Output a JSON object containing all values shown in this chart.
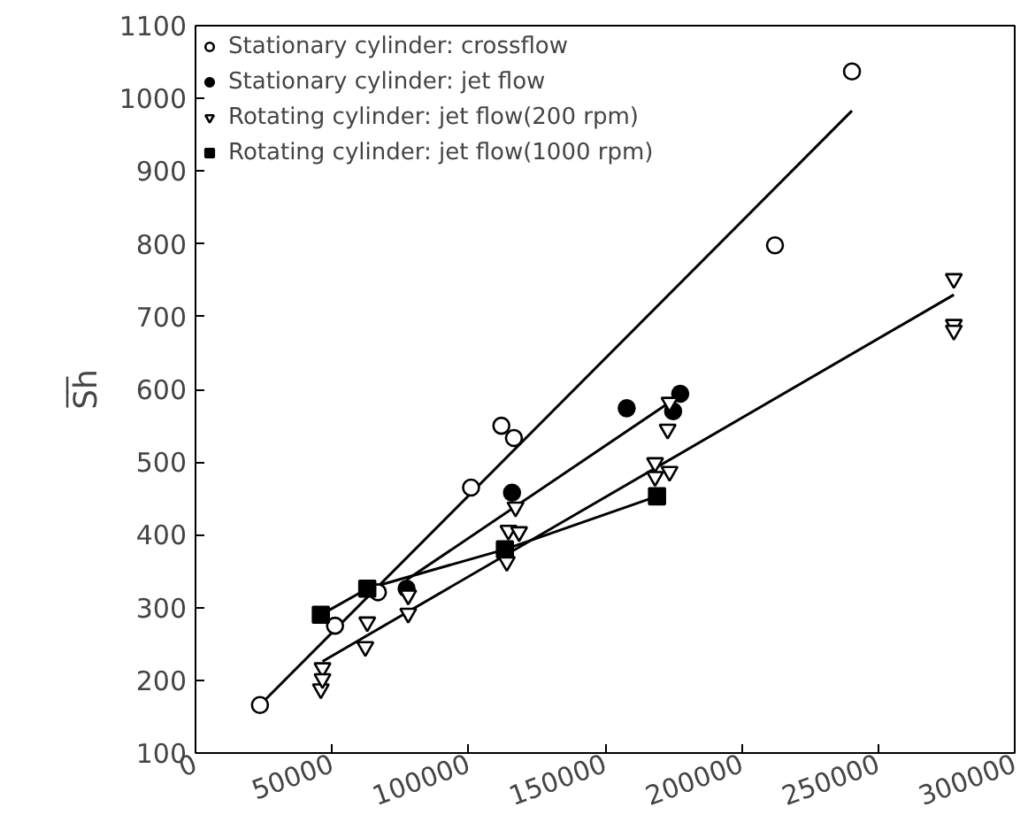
{
  "chart_data": {
    "type": "scatter",
    "ylabel": "S̅h̅",
    "xlim": [
      0,
      300000
    ],
    "ylim": [
      100,
      1100
    ],
    "xticks": [
      0,
      50000,
      100000,
      150000,
      200000,
      250000,
      300000
    ],
    "yticks": [
      100,
      200,
      300,
      400,
      500,
      600,
      700,
      800,
      900,
      1000,
      1100
    ],
    "grid": false,
    "legend": "top left",
    "series": [
      {
        "name": "Stationary cylinder: crossflow",
        "color": "#000000",
        "marker": "circle",
        "x": [
          23600,
          51100,
          66800,
          100900,
          112000,
          116600,
          212200,
          240400
        ],
        "values": [
          166,
          275,
          321,
          465,
          550,
          533,
          798,
          1037
        ]
      },
      {
        "name": "Stationary cylinder: jet flow",
        "color": "#000000",
        "marker": "circle",
        "x": [
          77300,
          115900,
          157900,
          177500,
          174900
        ],
        "values": [
          326,
          458,
          574,
          594,
          570
        ]
      },
      {
        "name": "Rotating cylinder: jet flow(200 rpm)",
        "color": "#000000",
        "marker": "triangle",
        "x": [
          46500,
          45900,
          46500,
          62900,
          62200,
          77900,
          77900,
          114000,
          117200,
          114600,
          118500,
          172900,
          173600,
          168300,
          173600,
          168300,
          277700,
          277700,
          277700
        ],
        "values": [
          217,
          188,
          202,
          280,
          246,
          317,
          292,
          363,
          438,
          406,
          404,
          545,
          582,
          499,
          487,
          480,
          752,
          689,
          681
        ]
      },
      {
        "name": "Rotating cylinder: jet flow(1000 rpm)",
        "type": "line",
        "color": "#000000",
        "marker": "square",
        "x": [
          45900,
          62900,
          113300,
          169000
        ],
        "values": [
          290,
          326,
          380,
          453
        ]
      },
      {
        "type": "line",
        "color": "#000000",
        "marker": "none",
        "x": [
          23600,
          240400
        ],
        "values": [
          166,
          983
        ]
      },
      {
        "type": "line",
        "color": "#000000",
        "marker": "none",
        "x": [
          77300,
          177500
        ],
        "values": [
          338,
          592
        ]
      },
      {
        "type": "line",
        "color": "#000000",
        "marker": "none",
        "x": [
          46500,
          277700
        ],
        "values": [
          226,
          730
        ]
      }
    ]
  }
}
